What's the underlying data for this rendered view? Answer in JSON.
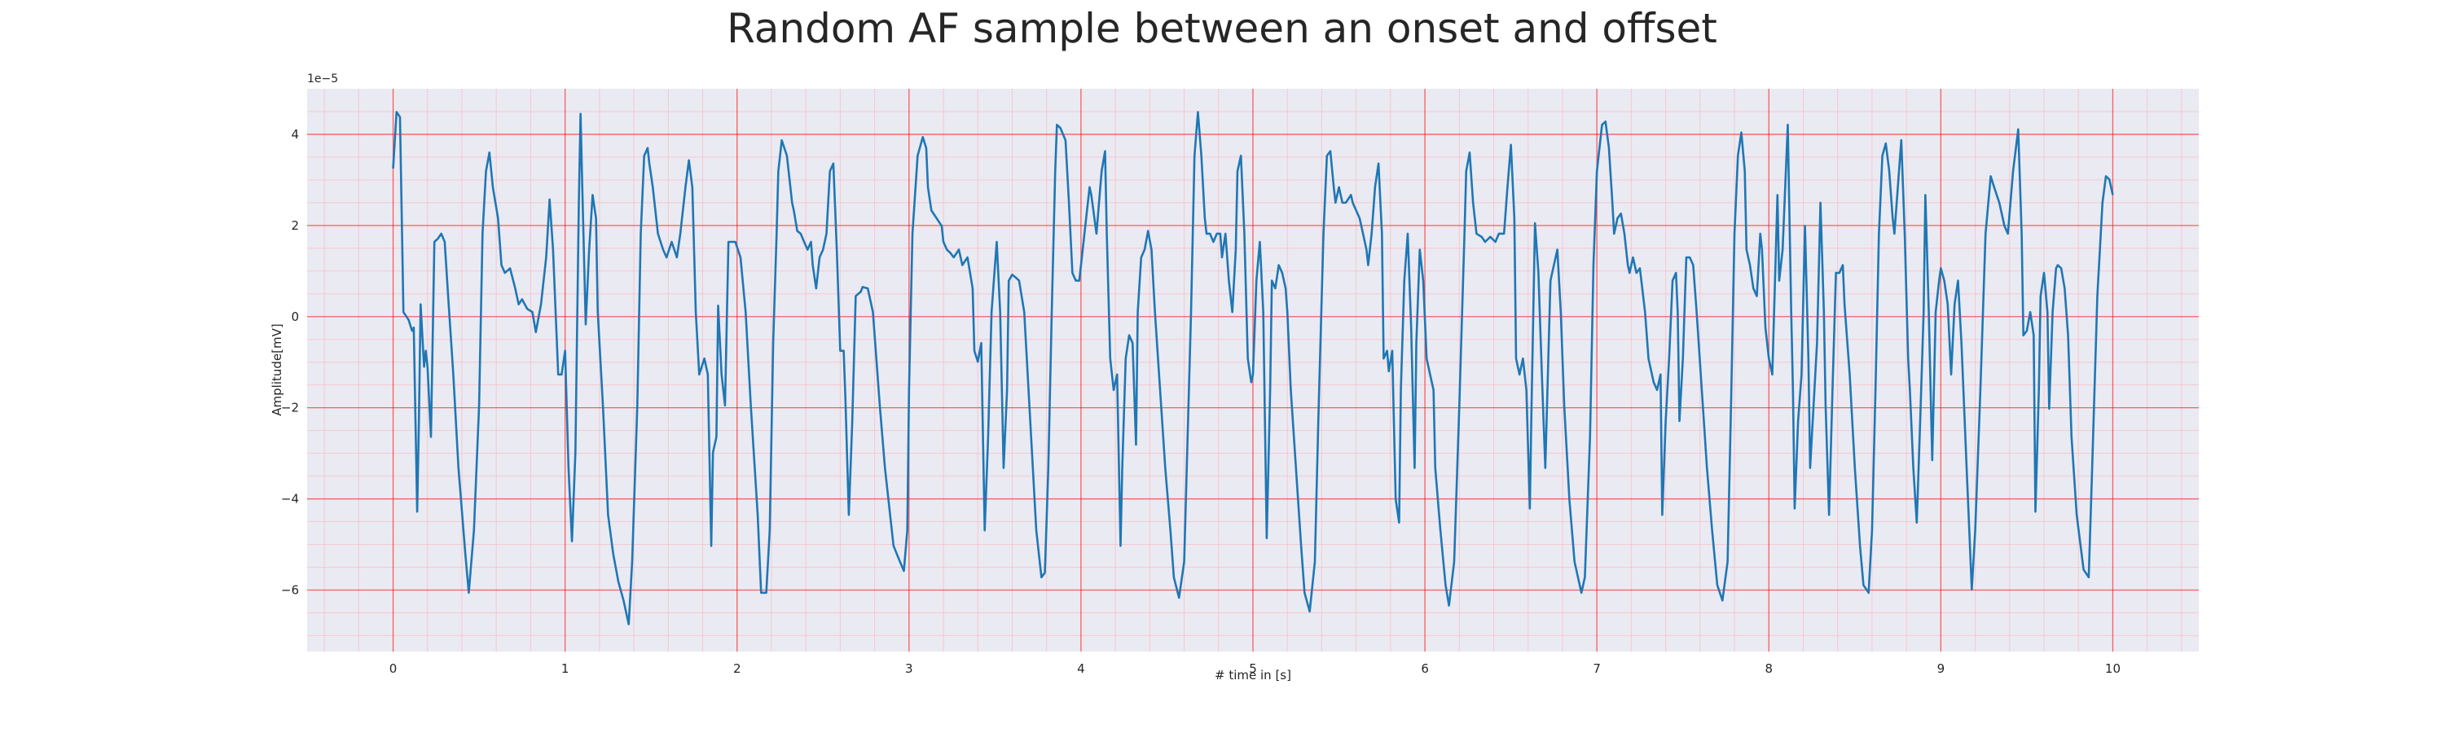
{
  "chart_data": {
    "type": "line",
    "title": "Random AF sample between an onset and offset",
    "xlabel": "# time in [s]",
    "ylabel": "Amplitude[mV]",
    "offset_text": "1e−5",
    "color": "#1f77b4",
    "plot_background": "#eaeaf2",
    "grid": true,
    "grid_color": "#ff0000",
    "minor_grid": true,
    "minor_grid_color": "#ffb0b8",
    "xlim": [
      -0.5,
      10.5
    ],
    "ylim": [
      -7.35,
      5.0
    ],
    "xticks": [
      0,
      1,
      2,
      3,
      4,
      5,
      6,
      7,
      8,
      9,
      10
    ],
    "yticks": [
      {
        "value": -6,
        "label": "−6"
      },
      {
        "value": -4,
        "label": "−4"
      },
      {
        "value": -2,
        "label": "−2"
      },
      0,
      2,
      4
    ],
    "xminorticks": [
      -0.4,
      -0.2,
      0.2,
      0.4,
      0.6,
      0.8,
      1.2,
      1.4,
      1.6,
      1.8,
      2.2,
      2.4,
      2.6,
      2.8,
      3.2,
      3.4,
      3.6,
      3.8,
      4.2,
      4.4,
      4.6,
      4.8,
      5.2,
      5.4,
      5.6,
      5.8,
      6.2,
      6.4,
      6.6,
      6.8,
      7.2,
      7.4,
      7.6,
      7.8,
      8.2,
      8.4,
      8.6,
      8.8,
      9.2,
      9.4,
      9.6,
      9.8,
      10.2,
      10.4
    ],
    "yminorticks": [
      -7,
      -6.5,
      -5.5,
      -5,
      -4.5,
      -3.5,
      -3,
      -2.5,
      -1.5,
      -1,
      -0.5,
      0.5,
      1,
      1.5,
      2.5,
      3,
      3.5,
      4.5
    ],
    "x": [
      0.0,
      0.02,
      0.04,
      0.06,
      0.09,
      0.11,
      0.12,
      0.14,
      0.15,
      0.16,
      0.18,
      0.19,
      0.2,
      0.22,
      0.24,
      0.26,
      0.28,
      0.3,
      0.32,
      0.35,
      0.38,
      0.42,
      0.44,
      0.47,
      0.5,
      0.52,
      0.54,
      0.56,
      0.58,
      0.61,
      0.63,
      0.65,
      0.68,
      0.71,
      0.73,
      0.75,
      0.78,
      0.81,
      0.83,
      0.86,
      0.89,
      0.91,
      0.93,
      0.96,
      0.98,
      1.0,
      1.02,
      1.04,
      1.06,
      1.07,
      1.08,
      1.09,
      1.1,
      1.12,
      1.14,
      1.16,
      1.18,
      1.19,
      1.22,
      1.25,
      1.28,
      1.31,
      1.34,
      1.37,
      1.39,
      1.42,
      1.44,
      1.46,
      1.48,
      1.49,
      1.51,
      1.54,
      1.57,
      1.59,
      1.62,
      1.65,
      1.67,
      1.7,
      1.72,
      1.74,
      1.76,
      1.78,
      1.81,
      1.83,
      1.85,
      1.86,
      1.88,
      1.89,
      1.91,
      1.93,
      1.95,
      1.96,
      1.99,
      2.02,
      2.05,
      2.08,
      2.12,
      2.14,
      2.17,
      2.19,
      2.21,
      2.23,
      2.24,
      2.26,
      2.29,
      2.32,
      2.33,
      2.35,
      2.37,
      2.39,
      2.41,
      2.43,
      2.44,
      2.46,
      2.48,
      2.5,
      2.52,
      2.54,
      2.56,
      2.58,
      2.6,
      2.62,
      2.63,
      2.65,
      2.67,
      2.69,
      2.72,
      2.73,
      2.76,
      2.79,
      2.81,
      2.83,
      2.86,
      2.89,
      2.91,
      2.94,
      2.97,
      2.99,
      3.0,
      3.02,
      3.05,
      3.08,
      3.1,
      3.11,
      3.13,
      3.16,
      3.19,
      3.2,
      3.22,
      3.24,
      3.26,
      3.29,
      3.31,
      3.34,
      3.37,
      3.38,
      3.4,
      3.42,
      3.44,
      3.46,
      3.48,
      3.49,
      3.51,
      3.53,
      3.55,
      3.57,
      3.58,
      3.6,
      3.62,
      3.64,
      3.67,
      3.69,
      3.72,
      3.74,
      3.76,
      3.77,
      3.79,
      3.81,
      3.83,
      3.85,
      3.86,
      3.88,
      3.91,
      3.93,
      3.95,
      3.97,
      3.99,
      4.01,
      4.03,
      4.05,
      4.06,
      4.09,
      4.12,
      4.14,
      4.15,
      4.17,
      4.19,
      4.21,
      4.23,
      4.24,
      4.26,
      4.28,
      4.3,
      4.32,
      4.33,
      4.35,
      4.37,
      4.39,
      4.41,
      4.43,
      4.46,
      4.49,
      4.52,
      4.54,
      4.57,
      4.6,
      4.62,
      4.64,
      4.66,
      4.68,
      4.7,
      4.72,
      4.73,
      4.75,
      4.77,
      4.79,
      4.81,
      4.82,
      4.84,
      4.86,
      4.88,
      4.9,
      4.91,
      4.93,
      4.95,
      4.97,
      4.99,
      5.0,
      5.02,
      5.04,
      5.06,
      5.08,
      5.1,
      5.11,
      5.13,
      5.15,
      5.17,
      5.19,
      5.2,
      5.22,
      5.25,
      5.28,
      5.3,
      5.33,
      5.36,
      5.38,
      5.41,
      5.43,
      5.45,
      5.47,
      5.48,
      5.5,
      5.52,
      5.54,
      5.57,
      5.58,
      5.6,
      5.62,
      5.64,
      5.66,
      5.67,
      5.69,
      5.71,
      5.73,
      5.75,
      5.76,
      5.78,
      5.79,
      5.81,
      5.83,
      5.85,
      5.86,
      5.88,
      5.9,
      5.92,
      5.94,
      5.95,
      5.97,
      5.99,
      6.01,
      6.03,
      6.05,
      6.06,
      6.09,
      6.12,
      6.14,
      6.17,
      6.2,
      6.23,
      6.24,
      6.26,
      6.28,
      6.3,
      6.33,
      6.35,
      6.38,
      6.41,
      6.43,
      6.46,
      6.48,
      6.5,
      6.52,
      6.53,
      6.55,
      6.57,
      6.59,
      6.61,
      6.62,
      6.64,
      6.66,
      6.68,
      6.7,
      6.72,
      6.73,
      6.75,
      6.77,
      6.79,
      6.81,
      6.84,
      6.87,
      6.91,
      6.93,
      6.96,
      6.98,
      7.0,
      7.03,
      7.05,
      7.07,
      7.09,
      7.1,
      7.12,
      7.14,
      7.16,
      7.18,
      7.19,
      7.21,
      7.23,
      7.25,
      7.28,
      7.3,
      7.33,
      7.35,
      7.37,
      7.38,
      7.4,
      7.42,
      7.44,
      7.46,
      7.47,
      7.48,
      7.5,
      7.52,
      7.54,
      7.56,
      7.58,
      7.61,
      7.64,
      7.67,
      7.7,
      7.73,
      7.76,
      7.78,
      7.8,
      7.82,
      7.84,
      7.86,
      7.87,
      7.89,
      7.91,
      7.93,
      7.95,
      7.96,
      7.98,
      8.0,
      8.02,
      8.05,
      8.06,
      8.08,
      8.11,
      8.13,
      8.14,
      8.15,
      8.17,
      8.19,
      8.21,
      8.23,
      8.24,
      8.26,
      8.28,
      8.3,
      8.32,
      8.33,
      8.35,
      8.37,
      8.39,
      8.41,
      8.43,
      8.44,
      8.47,
      8.5,
      8.53,
      8.55,
      8.58,
      8.6,
      8.62,
      8.64,
      8.66,
      8.68,
      8.7,
      8.72,
      8.73,
      8.75,
      8.77,
      8.79,
      8.81,
      8.82,
      8.84,
      8.86,
      8.88,
      8.9,
      8.91,
      8.93,
      8.95,
      8.97,
      8.99,
      9.0,
      9.02,
      9.04,
      9.06,
      9.08,
      9.1,
      9.12,
      9.15,
      9.18,
      9.2,
      9.23,
      9.26,
      9.29,
      9.31,
      9.34,
      9.37,
      9.39,
      9.42,
      9.45,
      9.47,
      9.48,
      9.5,
      9.52,
      9.54,
      9.55,
      9.57,
      9.58,
      9.6,
      9.62,
      9.63,
      9.65,
      9.67,
      9.68,
      9.7,
      9.72,
      9.74,
      9.76,
      9.79,
      9.83,
      9.86,
      9.88,
      9.91,
      9.94,
      9.96,
      9.98,
      10.0
    ],
    "values": [
      3.25,
      4.49,
      4.38,
      0.1,
      -0.07,
      -0.31,
      -0.24,
      -4.28,
      -2.29,
      0.27,
      -1.1,
      -0.75,
      -1.1,
      -2.64,
      1.64,
      1.71,
      1.82,
      1.64,
      0.45,
      -1.27,
      -3.32,
      -5.21,
      -6.06,
      -4.69,
      -1.95,
      1.82,
      3.19,
      3.6,
      2.84,
      2.16,
      1.13,
      0.96,
      1.06,
      0.62,
      0.27,
      0.38,
      0.17,
      0.1,
      -0.34,
      0.27,
      1.3,
      2.57,
      1.47,
      -1.27,
      -1.27,
      -0.75,
      -3.32,
      -4.93,
      -2.98,
      -0.24,
      2.5,
      4.45,
      2.84,
      -0.17,
      1.47,
      2.67,
      2.16,
      0.1,
      -1.95,
      -4.35,
      -5.21,
      -5.82,
      -6.23,
      -6.75,
      -5.38,
      -1.95,
      1.82,
      3.53,
      3.7,
      3.36,
      2.84,
      1.82,
      1.47,
      1.3,
      1.64,
      1.3,
      1.82,
      2.84,
      3.43,
      2.84,
      0.1,
      -1.27,
      -0.92,
      -1.27,
      -5.03,
      -2.98,
      -2.64,
      0.24,
      -1.27,
      -1.95,
      1.64,
      1.64,
      1.64,
      1.3,
      0.1,
      -1.95,
      -4.35,
      -6.06,
      -6.06,
      -4.69,
      -0.58,
      1.82,
      3.19,
      3.87,
      3.53,
      2.5,
      2.33,
      1.88,
      1.82,
      1.64,
      1.47,
      1.64,
      1.13,
      0.62,
      1.3,
      1.47,
      1.82,
      3.19,
      3.36,
      1.47,
      -0.75,
      -0.75,
      -1.78,
      -4.35,
      -2.29,
      0.45,
      0.55,
      0.65,
      0.62,
      0.1,
      -0.92,
      -1.95,
      -3.32,
      -4.35,
      -5.03,
      -5.31,
      -5.58,
      -4.69,
      -1.61,
      1.82,
      3.53,
      3.94,
      3.7,
      2.84,
      2.33,
      2.16,
      1.99,
      1.64,
      1.47,
      1.4,
      1.3,
      1.47,
      1.13,
      1.3,
      0.62,
      -0.75,
      -0.99,
      -0.58,
      -4.69,
      -2.64,
      0.1,
      0.62,
      1.64,
      0.1,
      -3.32,
      -1.61,
      0.79,
      0.92,
      0.86,
      0.79,
      0.1,
      -1.27,
      -3.32,
      -4.69,
      -5.38,
      -5.72,
      -5.62,
      -3.32,
      0.1,
      3.19,
      4.21,
      4.14,
      3.87,
      2.5,
      0.96,
      0.79,
      0.79,
      1.47,
      2.16,
      2.84,
      2.67,
      1.82,
      3.19,
      3.63,
      1.82,
      -0.92,
      -1.61,
      -1.27,
      -5.03,
      -3.32,
      -0.92,
      -0.41,
      -0.58,
      -2.81,
      0.1,
      1.3,
      1.47,
      1.88,
      1.47,
      0.1,
      -1.61,
      -3.32,
      -4.69,
      -5.72,
      -6.17,
      -5.38,
      -2.64,
      0.1,
      3.53,
      4.49,
      3.53,
      2.16,
      1.82,
      1.82,
      1.64,
      1.82,
      1.82,
      1.3,
      1.82,
      0.79,
      0.1,
      1.47,
      3.19,
      3.53,
      1.82,
      -0.92,
      -1.44,
      -1.27,
      0.79,
      1.64,
      0.1,
      -4.86,
      -1.61,
      0.79,
      0.62,
      1.13,
      0.96,
      0.62,
      0.1,
      -1.61,
      -3.32,
      -5.03,
      -6.06,
      -6.47,
      -5.38,
      -2.29,
      1.82,
      3.53,
      3.63,
      2.84,
      2.5,
      2.84,
      2.5,
      2.5,
      2.67,
      2.5,
      2.33,
      2.16,
      1.82,
      1.47,
      1.13,
      1.82,
      2.84,
      3.36,
      1.82,
      -0.92,
      -0.75,
      -1.2,
      -0.75,
      -4.01,
      -4.52,
      -1.61,
      0.79,
      1.82,
      -0.24,
      -3.32,
      -0.58,
      1.47,
      0.79,
      -0.92,
      -1.27,
      -1.61,
      -3.32,
      -4.69,
      -5.89,
      -6.34,
      -5.38,
      -1.95,
      1.82,
      3.19,
      3.6,
      2.5,
      1.82,
      1.75,
      1.64,
      1.75,
      1.64,
      1.82,
      1.82,
      2.84,
      3.77,
      2.16,
      -0.92,
      -1.27,
      -0.92,
      -1.61,
      -4.21,
      -1.95,
      2.05,
      0.96,
      -1.27,
      -3.32,
      -0.58,
      0.79,
      1.13,
      1.47,
      0.1,
      -1.95,
      -4.01,
      -5.38,
      -6.06,
      -5.72,
      -2.64,
      1.13,
      3.19,
      4.21,
      4.28,
      3.7,
      2.5,
      1.82,
      2.16,
      2.26,
      1.82,
      1.13,
      0.96,
      1.3,
      0.96,
      1.06,
      0.1,
      -0.92,
      -1.44,
      -1.61,
      -1.27,
      -4.35,
      -2.29,
      -0.92,
      0.79,
      0.96,
      0.1,
      -2.29,
      -0.92,
      1.3,
      1.3,
      1.13,
      0.1,
      -1.61,
      -3.32,
      -4.69,
      -5.89,
      -6.23,
      -5.38,
      -1.95,
      1.82,
      3.53,
      4.04,
      3.19,
      1.47,
      1.13,
      0.62,
      0.45,
      1.82,
      1.47,
      -0.24,
      -0.92,
      -1.27,
      2.67,
      0.79,
      1.47,
      4.21,
      0.1,
      -1.61,
      -4.21,
      -2.29,
      -1.27,
      1.99,
      -0.92,
      -3.32,
      -1.95,
      -0.58,
      2.5,
      0.1,
      -1.95,
      -4.35,
      -1.61,
      0.96,
      0.96,
      1.13,
      0.27,
      -1.27,
      -3.32,
      -5.03,
      -5.89,
      -6.06,
      -4.69,
      -1.61,
      1.82,
      3.53,
      3.8,
      3.19,
      2.16,
      1.82,
      2.84,
      3.87,
      1.82,
      -0.92,
      -1.61,
      -3.32,
      -4.52,
      -2.29,
      0.1,
      2.67,
      0.1,
      -3.15,
      0.1,
      0.79,
      1.06,
      0.79,
      0.27,
      -1.27,
      0.27,
      0.79,
      -0.58,
      -3.32,
      -5.99,
      -4.69,
      -1.61,
      1.82,
      3.08,
      2.84,
      2.5,
      1.99,
      1.82,
      3.19,
      4.11,
      1.82,
      -0.41,
      -0.31,
      0.1,
      -0.41,
      -4.28,
      -1.61,
      0.45,
      0.96,
      0.1,
      -2.02,
      0.1,
      1.06,
      1.13,
      1.06,
      0.62,
      -0.41,
      -2.64,
      -4.35,
      -5.55,
      -5.72,
      -3.32,
      0.45,
      2.5,
      3.08,
      3.01,
      2.67
    ]
  }
}
